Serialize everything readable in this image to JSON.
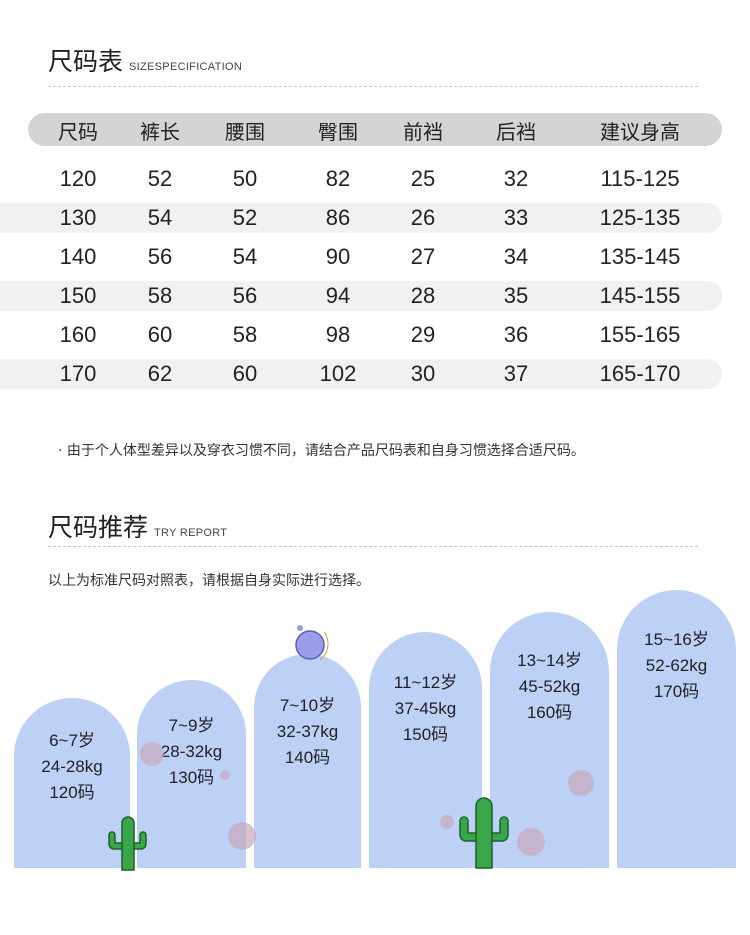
{
  "spec": {
    "title": "尺码表",
    "subtitle": "SIZESPECIFICATION",
    "headers": [
      "尺码",
      "裤长",
      "腰围",
      "臀围",
      "前裆",
      "后裆",
      "建议身高"
    ],
    "rows": [
      [
        "120",
        "52",
        "50",
        "82",
        "25",
        "32",
        "115-125"
      ],
      [
        "130",
        "54",
        "52",
        "86",
        "26",
        "33",
        "125-135"
      ],
      [
        "140",
        "56",
        "54",
        "90",
        "27",
        "34",
        "135-145"
      ],
      [
        "150",
        "58",
        "56",
        "94",
        "28",
        "35",
        "145-155"
      ],
      [
        "160",
        "60",
        "58",
        "98",
        "29",
        "36",
        "155-165"
      ],
      [
        "170",
        "62",
        "60",
        "102",
        "30",
        "37",
        "165-170"
      ]
    ],
    "note": "· 由于个人体型差异以及穿衣习惯不同，请结合产品尺码表和自身习惯选择合适尺码。"
  },
  "recommend": {
    "title": "尺码推荐",
    "subtitle": "TRY REPORT",
    "intro": "以上为标准尺码对照表，请根据自身实际进行选择。",
    "cards": [
      {
        "age": "6~7岁",
        "weight": "24-28kg",
        "size": "120码"
      },
      {
        "age": "7~9岁",
        "weight": "28-32kg",
        "size": "130码"
      },
      {
        "age": "7~10岁",
        "weight": "32-37kg",
        "size": "140码"
      },
      {
        "age": "11~12岁",
        "weight": "37-45kg",
        "size": "150码"
      },
      {
        "age": "13~14岁",
        "weight": "45-52kg",
        "size": "160码"
      },
      {
        "age": "15~16岁",
        "weight": "52-62kg",
        "size": "170码"
      }
    ]
  },
  "colors": {
    "card": "#bdd1f6",
    "header_bar": "#d4d4d6",
    "cactus": "#3aa64a"
  }
}
